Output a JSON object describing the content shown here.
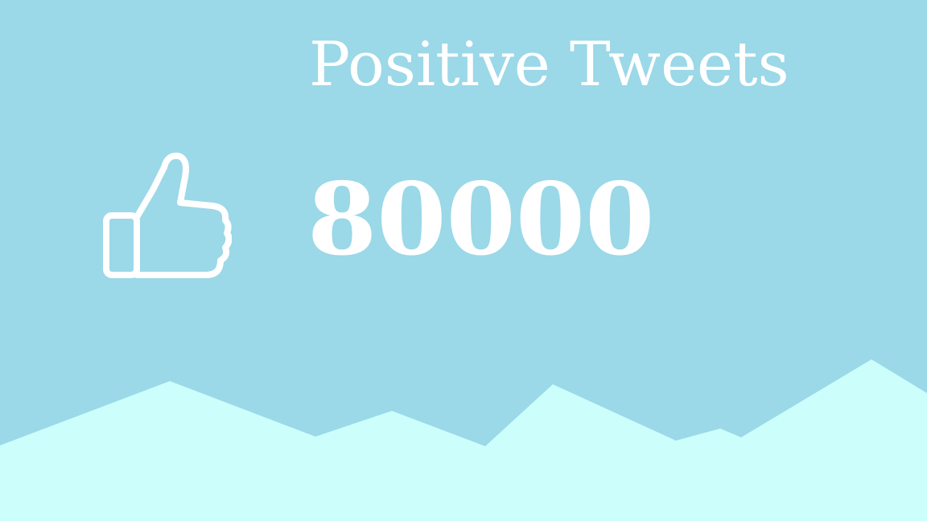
{
  "card": {
    "title": "Positive Tweets",
    "count": "80000",
    "icon": "thumbs-up-icon"
  },
  "colors": {
    "background": "#9bd8e8",
    "mountains": "#ccfffc",
    "text": "#ffffff"
  }
}
